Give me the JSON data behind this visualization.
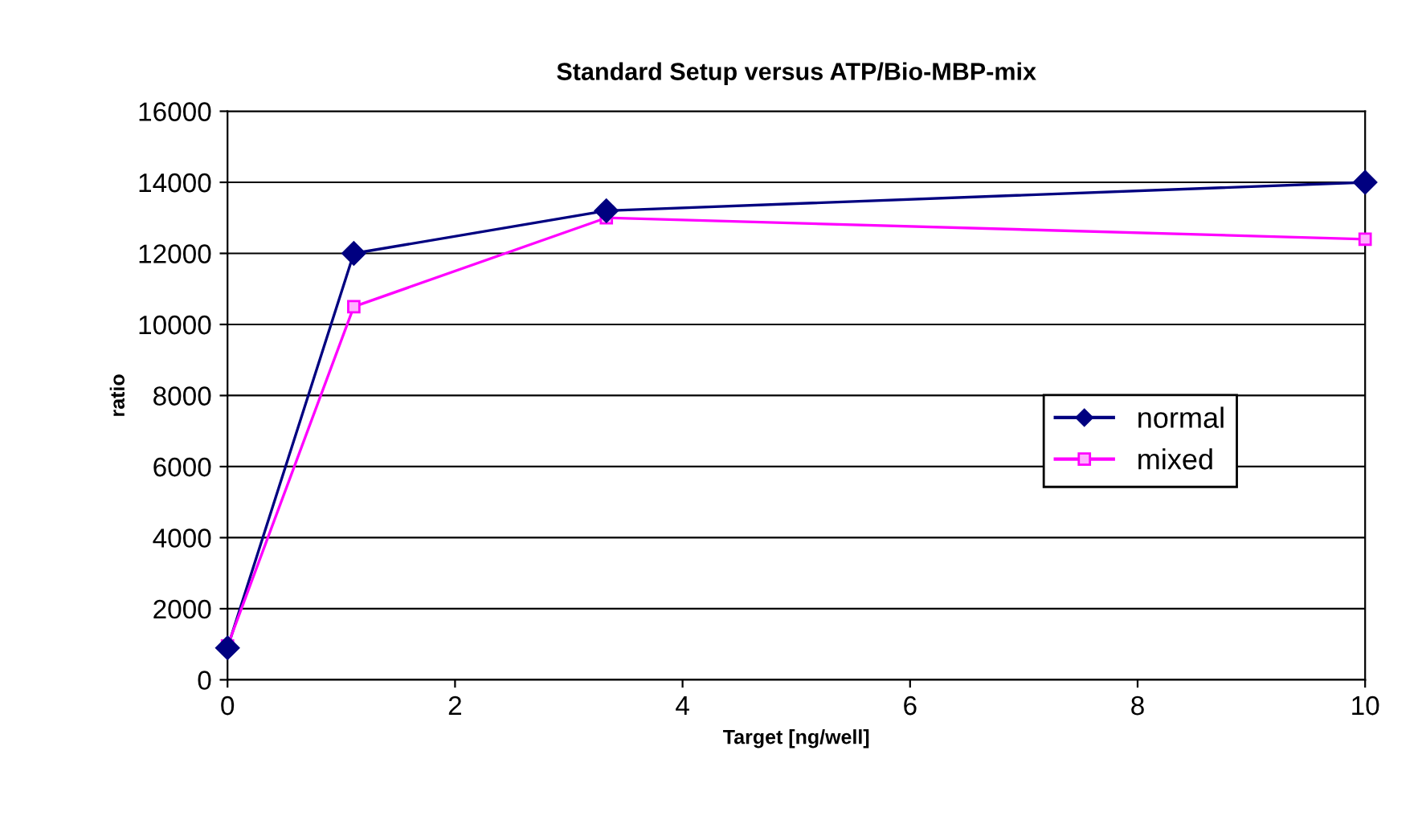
{
  "chart_data": {
    "type": "line",
    "title": "Standard Setup versus ATP/Bio-MBP-mix",
    "xlabel": "Target [ng/well]",
    "ylabel": "ratio",
    "x": [
      0,
      1.11,
      3.33,
      10
    ],
    "series": [
      {
        "name": "normal",
        "color": "#000080",
        "values": [
          900,
          12000,
          13200,
          14000
        ],
        "marker": "diamond"
      },
      {
        "name": "mixed",
        "color": "#ff00ff",
        "values": [
          950,
          10500,
          13000,
          12400
        ],
        "marker": "square"
      }
    ],
    "xlim": [
      0,
      10
    ],
    "xticks": [
      0,
      2,
      4,
      6,
      8,
      10
    ],
    "ylim": [
      0,
      16000
    ],
    "yticks": [
      0,
      2000,
      4000,
      6000,
      8000,
      10000,
      12000,
      14000,
      16000
    ],
    "grid": "y",
    "legend": "right",
    "line_style": "solid"
  }
}
